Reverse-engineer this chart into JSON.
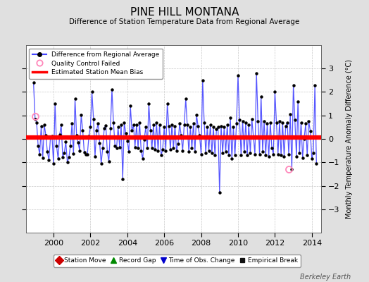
{
  "title": "PINE HILL MONTANA",
  "subtitle": "Difference of Station Temperature Data from Regional Average",
  "ylabel": "Monthly Temperature Anomaly Difference (°C)",
  "xlabel_years": [
    2000,
    2002,
    2004,
    2006,
    2008,
    2010,
    2012,
    2014
  ],
  "yticks": [
    -3,
    -2,
    -1,
    0,
    1,
    2,
    3
  ],
  "ylim": [
    -4,
    4
  ],
  "xlim": [
    1998.5,
    2014.5
  ],
  "bias_line_y": 0.05,
  "bias_line_color": "#FF0000",
  "series_color": "#4444FF",
  "dot_color": "#000000",
  "background_color": "#E0E0E0",
  "plot_bg_color": "#FFFFFF",
  "qc_fail_points": [
    [
      1999.0,
      0.95
    ],
    [
      2012.75,
      -1.3
    ]
  ],
  "qc_color": "#FF88BB",
  "watermark": "Berkeley Earth",
  "seed": 42,
  "n_points": 185,
  "start_year": 1998.917
}
